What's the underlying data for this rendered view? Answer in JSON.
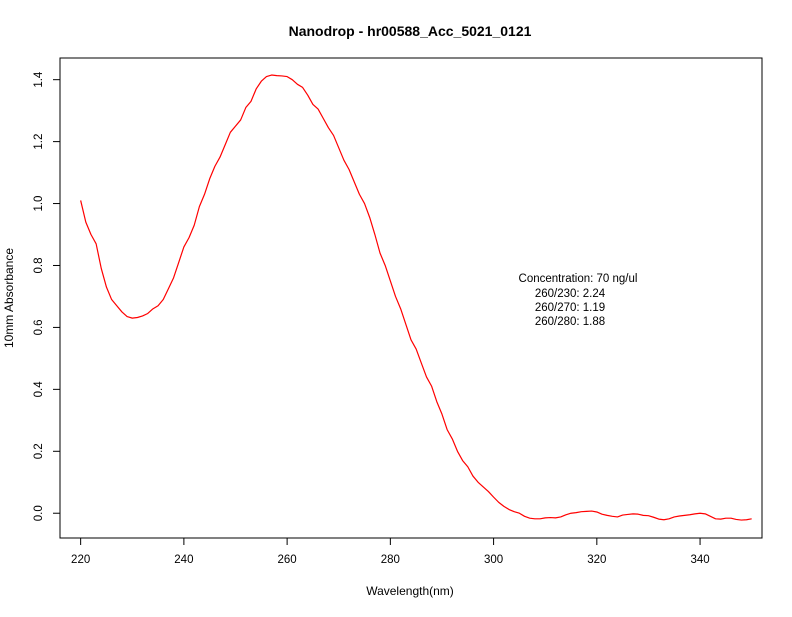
{
  "chart_data": {
    "type": "line",
    "title": "Nanodrop - hr00588_Acc_5021_0121",
    "xlabel": "Wavelength(nm)",
    "ylabel": "10mm Absorbance",
    "xlim": [
      216,
      352
    ],
    "ylim": [
      -0.08,
      1.47
    ],
    "x_ticks": [
      220,
      240,
      260,
      280,
      300,
      320,
      340
    ],
    "x_tick_labels": [
      "220",
      "240",
      "260",
      "280",
      "300",
      "320",
      "340"
    ],
    "y_ticks": [
      0.0,
      0.2,
      0.4,
      0.6,
      0.8,
      1.0,
      1.2,
      1.4
    ],
    "y_tick_labels": [
      "0.0",
      "0.2",
      "0.4",
      "0.6",
      "0.8",
      "1.0",
      "1.2",
      "1.4"
    ],
    "grid": false,
    "line_color": "#ff0000",
    "annotations": [
      "Concentration: 70 ng/ul",
      "260/230: 2.24",
      "260/270: 1.19",
      "260/280: 1.88"
    ],
    "series": [
      {
        "x": [
          220,
          221,
          222,
          223,
          224,
          225,
          226,
          227,
          228,
          229,
          230,
          231,
          232,
          233,
          234,
          235,
          236,
          237,
          238,
          239,
          240,
          241,
          242,
          243,
          244,
          245,
          246,
          247,
          248,
          249,
          250,
          251,
          252,
          253,
          254,
          255,
          256,
          257,
          258,
          259,
          260,
          261,
          262,
          263,
          264,
          265,
          266,
          267,
          268,
          269,
          270,
          271,
          272,
          273,
          274,
          275,
          276,
          277,
          278,
          279,
          280,
          281,
          282,
          283,
          284,
          285,
          286,
          287,
          288,
          289,
          290,
          291,
          292,
          293,
          294,
          295,
          296,
          297,
          298,
          299,
          300,
          301,
          302,
          303,
          304,
          305,
          306,
          307,
          308,
          309,
          310,
          311,
          312,
          313,
          314,
          315,
          316,
          317,
          318,
          319,
          320,
          321,
          322,
          323,
          324,
          325,
          326,
          327,
          328,
          329,
          330,
          331,
          332,
          333,
          334,
          335,
          336,
          337,
          338,
          339,
          340,
          341,
          342,
          343,
          344,
          345,
          346,
          347,
          348,
          349,
          350
        ],
        "y": [
          1.01,
          0.94,
          0.9,
          0.87,
          0.79,
          0.73,
          0.69,
          0.67,
          0.65,
          0.635,
          0.63,
          0.632,
          0.637,
          0.645,
          0.66,
          0.67,
          0.69,
          0.725,
          0.76,
          0.81,
          0.86,
          0.89,
          0.93,
          0.99,
          1.03,
          1.08,
          1.12,
          1.15,
          1.19,
          1.23,
          1.25,
          1.27,
          1.31,
          1.33,
          1.37,
          1.395,
          1.41,
          1.415,
          1.413,
          1.412,
          1.41,
          1.4,
          1.385,
          1.375,
          1.35,
          1.32,
          1.305,
          1.275,
          1.245,
          1.22,
          1.18,
          1.14,
          1.11,
          1.07,
          1.03,
          1.0,
          0.955,
          0.9,
          0.84,
          0.8,
          0.75,
          0.7,
          0.66,
          0.61,
          0.56,
          0.53,
          0.485,
          0.44,
          0.41,
          0.36,
          0.32,
          0.27,
          0.24,
          0.2,
          0.17,
          0.15,
          0.12,
          0.1,
          0.085,
          0.07,
          0.052,
          0.035,
          0.022,
          0.012,
          0.005,
          0.0,
          -0.01,
          -0.016,
          -0.018,
          -0.018,
          -0.015,
          -0.014,
          -0.015,
          -0.012,
          -0.005,
          0.0,
          0.002,
          0.005,
          0.006,
          0.007,
          0.004,
          -0.003,
          -0.007,
          -0.01,
          -0.012,
          -0.006,
          -0.004,
          -0.002,
          -0.003,
          -0.007,
          -0.008,
          -0.013,
          -0.019,
          -0.021,
          -0.018,
          -0.012,
          -0.009,
          -0.007,
          -0.005,
          -0.002,
          0.0,
          -0.002,
          -0.01,
          -0.018,
          -0.019,
          -0.016,
          -0.016,
          -0.02,
          -0.022,
          -0.021,
          -0.018
        ]
      }
    ]
  }
}
